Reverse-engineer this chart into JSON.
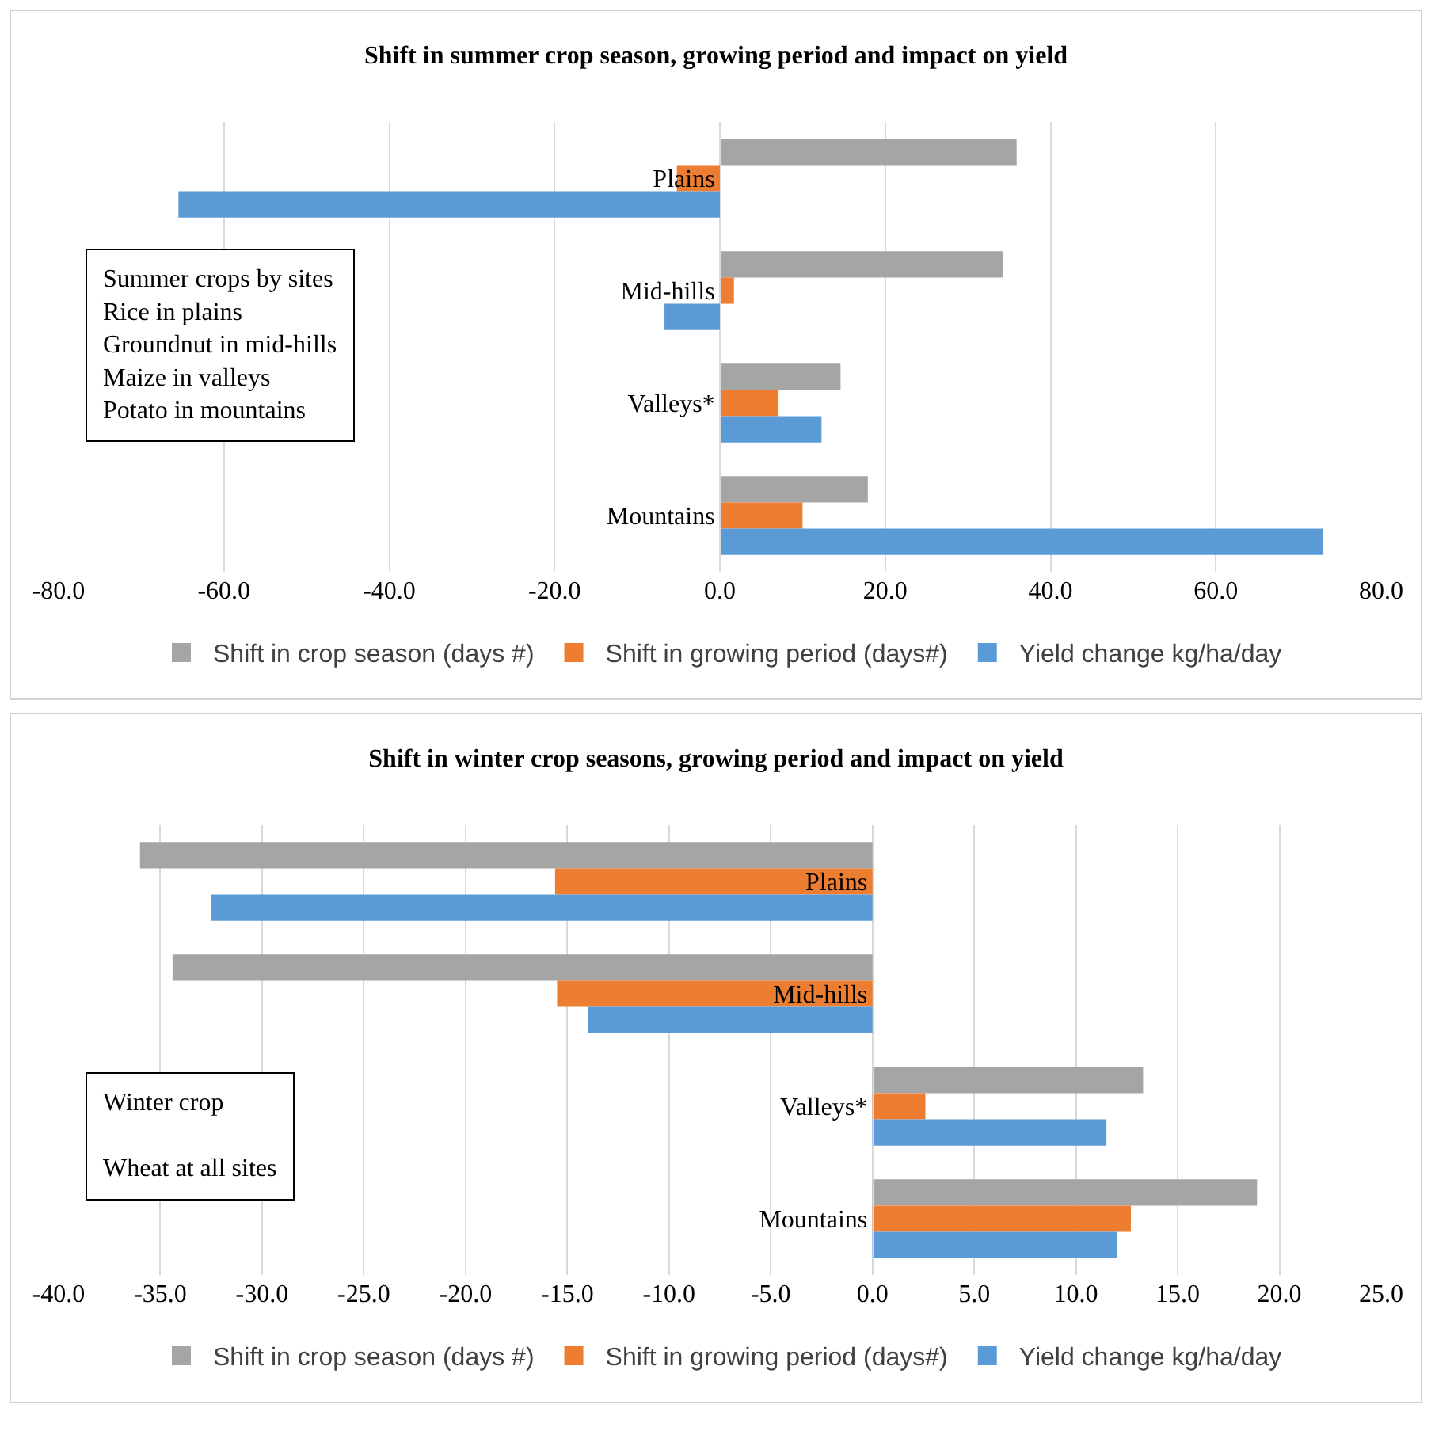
{
  "chart_data": [
    {
      "type": "bar",
      "orientation": "horizontal",
      "title": "Shift in summer crop season, growing period and impact on yield",
      "categories": [
        "Plains",
        "Mid-hills",
        "Valleys*",
        "Mountains"
      ],
      "series": [
        {
          "name": "Shift in crop season (days #)",
          "color": "#a5a5a5",
          "values": [
            35.9,
            34.2,
            14.6,
            17.9
          ]
        },
        {
          "name": "Shift in growing period (days#)",
          "color": "#ed7d31",
          "values": [
            -5.2,
            1.7,
            7.1,
            10.0
          ]
        },
        {
          "name": "Yield change kg/ha/day",
          "color": "#5b9bd5",
          "values": [
            -65.5,
            -6.7,
            12.3,
            73.0
          ]
        }
      ],
      "xlim": [
        -80,
        80
      ],
      "xticks": [
        {
          "value": -80,
          "label": "-80.0"
        },
        {
          "value": -60,
          "label": "-60.0"
        },
        {
          "value": -40,
          "label": "-40.0"
        },
        {
          "value": -20,
          "label": "-20.0"
        },
        {
          "value": 0,
          "label": "0.0"
        },
        {
          "value": 20,
          "label": "20.0"
        },
        {
          "value": 40,
          "label": "40.0"
        },
        {
          "value": 60,
          "label": "60.0"
        },
        {
          "value": 80,
          "label": "80.0"
        }
      ],
      "grid": "x",
      "legend": "bottom",
      "annotations": [
        "Summer crops by sites",
        "Rice in plains",
        "Groundnut in mid-hills",
        "Maize in valleys",
        "Potato in mountains"
      ]
    },
    {
      "type": "bar",
      "orientation": "horizontal",
      "title": "Shift in winter crop seasons, growing period and impact on yield",
      "categories": [
        "Plains",
        "Mid-hills",
        "Valleys*",
        "Mountains"
      ],
      "series": [
        {
          "name": "Shift in crop season (days #)",
          "color": "#a5a5a5",
          "values": [
            -36.0,
            -34.4,
            13.3,
            18.9
          ]
        },
        {
          "name": "Shift in growing period (days#)",
          "color": "#ed7d31",
          "values": [
            -15.6,
            -15.5,
            2.6,
            12.7
          ]
        },
        {
          "name": "Yield change kg/ha/day",
          "color": "#5b9bd5",
          "values": [
            -32.5,
            -14.0,
            11.5,
            12.0
          ]
        }
      ],
      "xlim": [
        -40,
        25
      ],
      "xticks": [
        {
          "value": -40,
          "label": "-40.0"
        },
        {
          "value": -35,
          "label": "-35.0"
        },
        {
          "value": -30,
          "label": "-30.0"
        },
        {
          "value": -25,
          "label": "-25.0"
        },
        {
          "value": -20,
          "label": "-20.0"
        },
        {
          "value": -15,
          "label": "-15.0"
        },
        {
          "value": -10,
          "label": "-10.0"
        },
        {
          "value": -5,
          "label": "-5.0"
        },
        {
          "value": 0,
          "label": "0.0"
        },
        {
          "value": 5,
          "label": "5.0"
        },
        {
          "value": 10,
          "label": "10.0"
        },
        {
          "value": 15,
          "label": "15.0"
        },
        {
          "value": 20,
          "label": "20.0"
        },
        {
          "value": 25,
          "label": "25.0"
        }
      ],
      "grid": "x",
      "legend": "bottom",
      "annotations": [
        "Winter crop",
        "Wheat at all sites"
      ]
    }
  ]
}
